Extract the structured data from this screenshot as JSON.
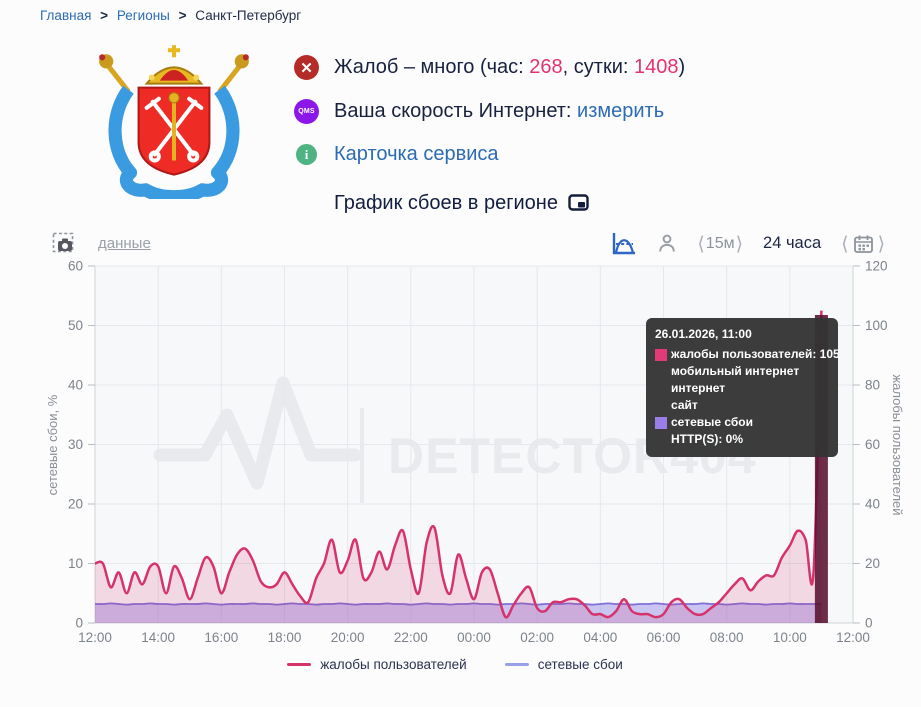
{
  "breadcrumb": {
    "separator": ">",
    "items": [
      {
        "label": "Главная"
      },
      {
        "label": "Регионы"
      },
      {
        "label": "Санкт-Петербург"
      }
    ]
  },
  "header": {
    "emblem_name": "герб Санкт-Петербурга",
    "complaints": {
      "before": "Жалоб – много (час: ",
      "hour": "268",
      "mid": ", сутки: ",
      "day": "1408",
      "after": ")"
    },
    "speed": {
      "badge": "QMS",
      "label": "Ваша скорость Интернет: ",
      "link": "измерить"
    },
    "service_card": {
      "link": "Карточка сервиса"
    }
  },
  "section": {
    "title": "График сбоев в регионе"
  },
  "controls": {
    "data_link": "данные",
    "bracket_left": "⟨",
    "interval": "15м",
    "bracket_right": "⟩",
    "range_label": "24 часа"
  },
  "watermark": {
    "text": "DETECTOR404"
  },
  "tooltip": {
    "title": "26.01.2026, 11:00",
    "rows": [
      {
        "swatch": "#e23a78",
        "text": "жалобы пользователей: 105"
      },
      {
        "text": "мобильный интернет"
      },
      {
        "text": "интернет"
      },
      {
        "text": "сайт"
      },
      {
        "swatch": "#9a7ee8",
        "text": "сетевые сбои"
      },
      {
        "text": "HTTP(S): 0%"
      }
    ]
  },
  "legend": [
    {
      "label": "жалобы пользователей",
      "color": "#d6336c"
    },
    {
      "label": "сетевые сбои",
      "color": "#98a1e6"
    }
  ],
  "chart_data": {
    "type": "line",
    "title": "График сбоев в регионе",
    "start_time": "12:00",
    "interval_minutes": 15,
    "hours_span": 24,
    "grid": true,
    "x_axis": {
      "tick_labels": [
        "12:00",
        "14:00",
        "16:00",
        "18:00",
        "20:00",
        "22:00",
        "00:00",
        "02:00",
        "04:00",
        "06:00",
        "08:00",
        "10:00",
        "12:00"
      ]
    },
    "y_left": {
      "label": "сетевые сбои, %",
      "min": 0,
      "max": 60,
      "ticks": [
        0,
        10,
        20,
        30,
        40,
        50,
        60
      ]
    },
    "y_right": {
      "label": "жалобы пользователей",
      "min": 0,
      "max": 120,
      "ticks": [
        0,
        20,
        40,
        60,
        80,
        100,
        120
      ]
    },
    "series": [
      {
        "name": "сетевые сбои",
        "axis": "left",
        "color": "#7f6fd8",
        "fill": "rgba(140,125,228,0.42)",
        "values": [
          3.2,
          3.2,
          3.3,
          3.2,
          3.1,
          3.2,
          3.2,
          3.3,
          3.2,
          3.2,
          3.1,
          3.2,
          3.2,
          3.2,
          3.3,
          3.2,
          3.1,
          3.2,
          3.2,
          3.2,
          3.3,
          3.2,
          3.2,
          3.1,
          3.2,
          3.3,
          3.2,
          3.2,
          3.1,
          3.2,
          3.2,
          3.3,
          3.2,
          3.1,
          3.2,
          3.2,
          3.2,
          3.3,
          3.2,
          3.2,
          3.1,
          3.2,
          3.3,
          3.2,
          3.2,
          3.1,
          3.2,
          3.2,
          3.3,
          3.2,
          3.2,
          3.1,
          3.2,
          3.2,
          3.3,
          3.2,
          3.1,
          3.2,
          3.2,
          3.2,
          3.3,
          3.2,
          3.2,
          3.1,
          3.2,
          3.3,
          3.2,
          3.2,
          3.1,
          3.2,
          3.2,
          3.3,
          3.2,
          3.1,
          3.2,
          3.2,
          3.2,
          3.3,
          3.2,
          3.2,
          3.1,
          3.2,
          3.3,
          3.2,
          3.2,
          3.1,
          3.2,
          3.2,
          3.3,
          3.2,
          3.2,
          3.2,
          3.2
        ]
      },
      {
        "name": "жалобы пользователей",
        "axis": "right",
        "color": "#d6336c",
        "fill": "rgba(214,51,108,0.16)",
        "values": [
          20,
          20,
          12,
          17,
          10,
          17,
          13,
          19,
          19,
          10,
          19,
          15,
          8,
          15,
          22,
          19,
          10,
          17,
          23,
          25,
          21,
          14,
          12,
          13,
          17,
          13,
          9,
          7,
          15,
          20,
          28,
          17,
          21,
          28,
          15,
          17,
          24,
          18,
          26,
          31,
          18,
          10,
          27,
          32,
          16,
          10,
          23,
          15,
          8,
          17,
          18,
          10,
          2,
          6,
          10,
          12,
          5,
          4,
          7,
          7,
          8,
          8,
          6,
          3,
          3,
          2,
          4,
          8,
          4,
          3,
          3,
          2,
          3,
          7,
          8,
          5,
          3,
          3,
          5,
          7,
          10,
          13,
          15,
          11,
          14,
          16,
          16,
          22,
          26,
          31,
          28,
          17,
          105
        ]
      }
    ],
    "hover": {
      "index": 92,
      "time": "26.01.2026, 11:00",
      "value": 105,
      "band_color": "#5a1130"
    }
  }
}
